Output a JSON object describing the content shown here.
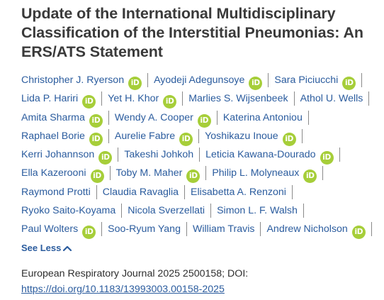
{
  "article": {
    "title": "Update of the International Multidisciplinary Classification of the Interstitial Pneumonias: An ERS/ATS Statement"
  },
  "authors": [
    {
      "name": "Christopher J. Ryerson",
      "orcid": true
    },
    {
      "name": "Ayodeji Adegunsoye",
      "orcid": true
    },
    {
      "name": "Sara Piciucchi",
      "orcid": true
    },
    {
      "name": "Lida P. Hariri",
      "orcid": true
    },
    {
      "name": "Yet H. Khor",
      "orcid": true
    },
    {
      "name": "Marlies S. Wijsenbeek",
      "orcid": false
    },
    {
      "name": "Athol U. Wells",
      "orcid": false
    },
    {
      "name": "Amita Sharma",
      "orcid": true
    },
    {
      "name": "Wendy A. Cooper",
      "orcid": true
    },
    {
      "name": "Katerina Antoniou",
      "orcid": false
    },
    {
      "name": "Raphael Borie",
      "orcid": true
    },
    {
      "name": "Aurelie Fabre",
      "orcid": true
    },
    {
      "name": "Yoshikazu Inoue",
      "orcid": true
    },
    {
      "name": "Kerri Johannson",
      "orcid": true
    },
    {
      "name": "Takeshi Johkoh",
      "orcid": false
    },
    {
      "name": "Leticia Kawana-Dourado",
      "orcid": true
    },
    {
      "name": "Ella Kazerooni",
      "orcid": true
    },
    {
      "name": "Toby M. Maher",
      "orcid": true
    },
    {
      "name": "Philip L. Molyneaux",
      "orcid": true
    },
    {
      "name": "Raymond Protti",
      "orcid": false
    },
    {
      "name": "Claudia Ravaglia",
      "orcid": false
    },
    {
      "name": "Elisabetta A. Renzoni",
      "orcid": false
    },
    {
      "name": "Ryoko Saito-Koyama",
      "orcid": false
    },
    {
      "name": "Nicola Sverzellati",
      "orcid": false
    },
    {
      "name": "Simon L. F. Walsh",
      "orcid": false
    },
    {
      "name": "Paul Wolters",
      "orcid": true
    },
    {
      "name": "Soo-Ryum Yang",
      "orcid": false
    },
    {
      "name": "William Travis",
      "orcid": false
    },
    {
      "name": "Andrew Nicholson",
      "orcid": true
    }
  ],
  "orcid_badge_text": "iD",
  "see_less_label": "See Less",
  "citation": {
    "text": "European Respiratory Journal 2025 2500158; DOI: ",
    "doi": "https://doi.org/10.1183/13993003.00158-2025"
  },
  "colors": {
    "link": "#2b5c9e",
    "orcid": "#a6ce39",
    "title": "#3a3a3a"
  }
}
